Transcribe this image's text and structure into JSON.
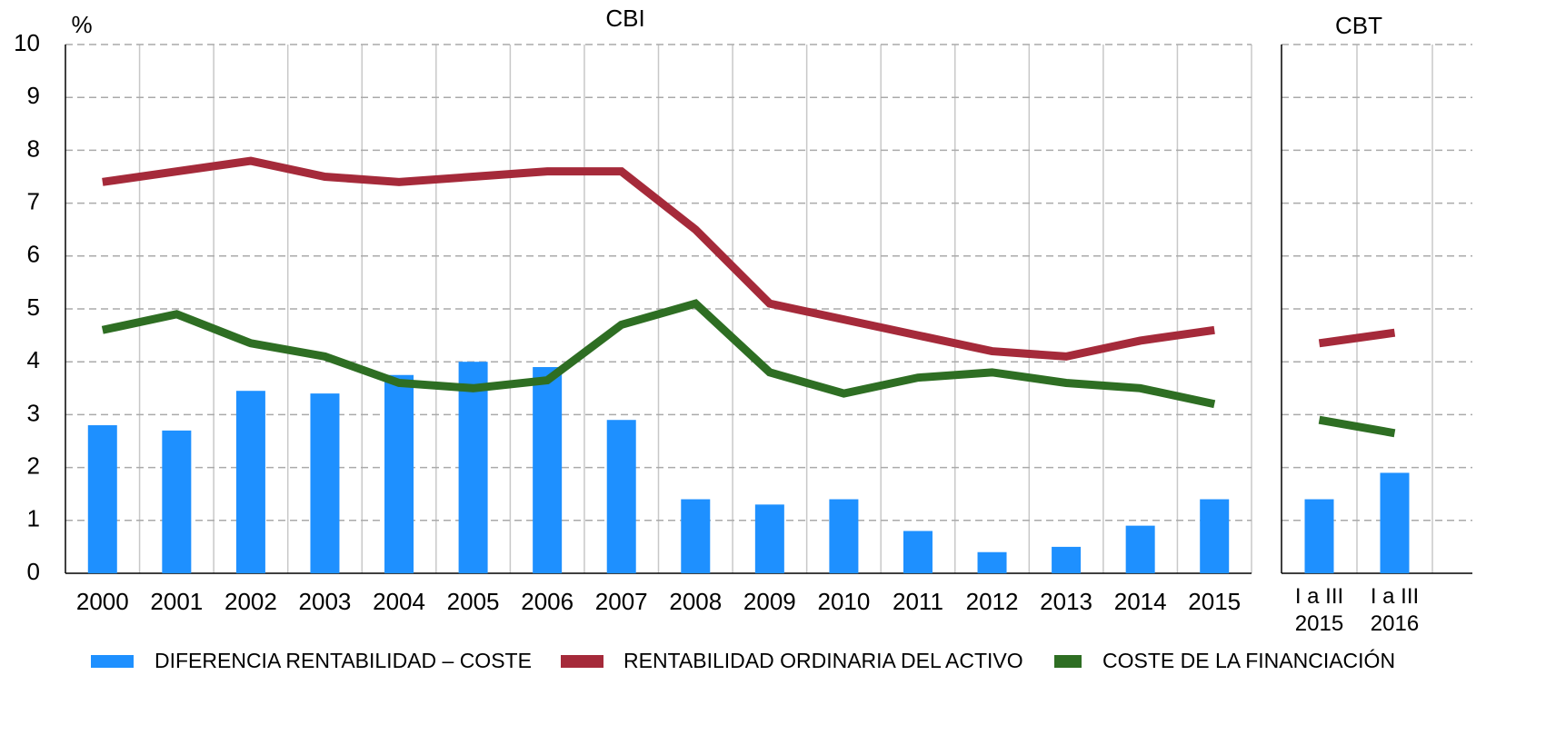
{
  "chart_data": [
    {
      "type": "combo",
      "title": "CBI",
      "ylabel": "%",
      "categories": [
        "2000",
        "2001",
        "2002",
        "2003",
        "2004",
        "2005",
        "2006",
        "2007",
        "2008",
        "2009",
        "2010",
        "2011",
        "2012",
        "2013",
        "2014",
        "2015"
      ],
      "ylim": [
        0,
        10
      ],
      "yticks": [
        0,
        1,
        2,
        3,
        4,
        5,
        6,
        7,
        8,
        9,
        10
      ],
      "grid": true,
      "series": [
        {
          "name": "DIFERENCIA RENTABILIDAD – COSTE",
          "color": "#1e90ff",
          "kind": "bar",
          "values": [
            2.8,
            2.7,
            3.45,
            3.4,
            3.75,
            4.0,
            3.9,
            2.9,
            1.4,
            1.3,
            1.4,
            0.8,
            0.4,
            0.5,
            0.9,
            1.4
          ]
        },
        {
          "name": "RENTABILIDAD ORDINARIA DEL ACTIVO",
          "color": "#a52a3a",
          "kind": "line",
          "values": [
            7.4,
            7.6,
            7.8,
            7.5,
            7.4,
            7.5,
            7.6,
            7.6,
            6.5,
            5.1,
            4.8,
            4.5,
            4.2,
            4.1,
            4.4,
            4.6
          ]
        },
        {
          "name": "COSTE DE LA FINANCIACIÓN",
          "color": "#2e6e23",
          "kind": "line",
          "values": [
            4.6,
            4.9,
            4.35,
            4.1,
            3.6,
            3.5,
            3.65,
            4.7,
            5.1,
            3.8,
            3.4,
            3.7,
            3.8,
            3.6,
            3.5,
            3.2
          ]
        }
      ]
    },
    {
      "type": "combo",
      "title": "CBT",
      "categories": [
        "I a III\n2015",
        "I a III\n2016"
      ],
      "series": [
        {
          "color": "#1e90ff",
          "kind": "bar",
          "values": [
            1.4,
            1.9
          ]
        },
        {
          "color": "#a52a3a",
          "kind": "line",
          "values": [
            4.35,
            4.55
          ]
        },
        {
          "color": "#2e6e23",
          "kind": "line",
          "values": [
            2.9,
            2.65
          ]
        }
      ]
    }
  ]
}
